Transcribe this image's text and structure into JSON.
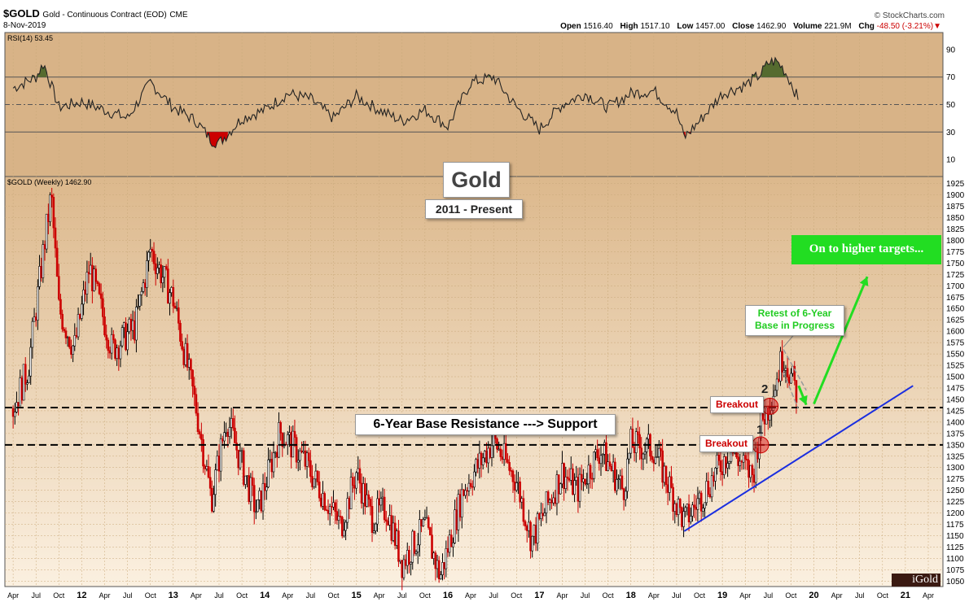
{
  "header": {
    "symbol": "$GOLD",
    "description": "Gold - Continuous Contract (EOD)",
    "exchange": "CME",
    "date": "8-Nov-2019",
    "watermark": "© StockCharts.com",
    "quote": {
      "open_label": "Open",
      "open": "1516.40",
      "high_label": "High",
      "high": "1517.10",
      "low_label": "Low",
      "low": "1457.00",
      "close_label": "Close",
      "close": "1462.90",
      "volume_label": "Volume",
      "volume": "221.9M",
      "chg_label": "Chg",
      "chg": "-48.50 (-3.21%)"
    }
  },
  "logo_text": "iGold",
  "colors": {
    "background_top": "#dcb88c",
    "background_bottom": "#fbf0e0",
    "up_candle": "#000000",
    "down_candle": "#cc0000",
    "support_line": "#000000",
    "trend_line": "#1a2ee0",
    "arrow_green": "#22dd22",
    "breakout_text": "#cc0000",
    "rsi_fill": "#556b2f"
  },
  "chart_data": [
    {
      "type": "line",
      "title": "RSI(14) 53.45",
      "indicator": "RSI",
      "period": 14,
      "last_value": 53.45,
      "ylim": [
        0,
        100
      ],
      "yticks": [
        10,
        30,
        50,
        70,
        90
      ],
      "reference_lines": [
        30,
        50,
        70
      ],
      "x": [
        "2011-04",
        "2011-07",
        "2011-08",
        "2011-10",
        "2012-01",
        "2012-04",
        "2012-07",
        "2012-10",
        "2013-01",
        "2013-04",
        "2013-06",
        "2013-07",
        "2013-10",
        "2014-01",
        "2014-04",
        "2014-07",
        "2014-10",
        "2015-01",
        "2015-04",
        "2015-07",
        "2015-10",
        "2016-01",
        "2016-04",
        "2016-07",
        "2016-10",
        "2017-01",
        "2017-04",
        "2017-07",
        "2017-10",
        "2018-01",
        "2018-04",
        "2018-07",
        "2018-08",
        "2018-10",
        "2019-01",
        "2019-04",
        "2019-06",
        "2019-07",
        "2019-08",
        "2019-09",
        "2019-10",
        "2019-11"
      ],
      "values": [
        62,
        70,
        80,
        48,
        52,
        46,
        40,
        66,
        48,
        38,
        24,
        22,
        40,
        46,
        58,
        54,
        40,
        56,
        46,
        38,
        46,
        34,
        66,
        70,
        48,
        32,
        50,
        58,
        48,
        58,
        60,
        44,
        26,
        38,
        58,
        64,
        72,
        80,
        82,
        76,
        66,
        53
      ]
    },
    {
      "type": "candlestick",
      "title": "$GOLD (Weekly) 1462.90",
      "subtitle_box": "Gold",
      "date_range_box": "2011 - Present",
      "ylim": [
        1040,
        1935
      ],
      "yticks": [
        1050,
        1075,
        1100,
        1125,
        1150,
        1175,
        1200,
        1225,
        1250,
        1275,
        1300,
        1325,
        1350,
        1375,
        1400,
        1425,
        1450,
        1475,
        1500,
        1525,
        1550,
        1575,
        1600,
        1625,
        1650,
        1675,
        1700,
        1725,
        1750,
        1775,
        1800,
        1825,
        1850,
        1875,
        1900,
        1925
      ],
      "x_tick_labels": [
        "Apr",
        "Jul",
        "Oct",
        "12",
        "Apr",
        "Jul",
        "Oct",
        "13",
        "Apr",
        "Jul",
        "Oct",
        "14",
        "Apr",
        "Jul",
        "Oct",
        "15",
        "Apr",
        "Jul",
        "Oct",
        "16",
        "Apr",
        "Jul",
        "Oct",
        "17",
        "Apr",
        "Jul",
        "Oct",
        "18",
        "Apr",
        "Jul",
        "Oct",
        "19",
        "Apr",
        "Jul",
        "Oct",
        "20",
        "Apr",
        "Jul",
        "Oct",
        "21",
        "Apr"
      ],
      "price_path": {
        "dates": [
          "2011-04",
          "2011-06",
          "2011-08",
          "2011-09",
          "2011-10",
          "2011-12",
          "2012-02",
          "2012-05",
          "2012-08",
          "2012-10",
          "2013-01",
          "2013-04",
          "2013-06",
          "2013-08",
          "2013-12",
          "2014-03",
          "2014-06",
          "2014-11",
          "2015-01",
          "2015-03",
          "2015-05",
          "2015-07",
          "2015-10",
          "2015-12",
          "2016-03",
          "2016-07",
          "2016-10",
          "2016-12",
          "2017-04",
          "2017-06",
          "2017-09",
          "2017-12",
          "2018-01",
          "2018-04",
          "2018-08",
          "2018-10",
          "2019-02",
          "2019-05",
          "2019-06",
          "2019-07",
          "2019-09",
          "2019-10",
          "2019-11"
        ],
        "close": [
          1430,
          1520,
          1780,
          1900,
          1650,
          1560,
          1740,
          1560,
          1610,
          1780,
          1670,
          1430,
          1230,
          1410,
          1200,
          1380,
          1320,
          1170,
          1290,
          1190,
          1210,
          1090,
          1170,
          1060,
          1250,
          1360,
          1270,
          1140,
          1290,
          1250,
          1340,
          1250,
          1350,
          1340,
          1180,
          1230,
          1340,
          1280,
          1400,
          1430,
          1550,
          1500,
          1462.9
        ]
      },
      "annotations": [
        {
          "text": "6-Year Base Resistance ---> Support",
          "type": "label"
        },
        {
          "text": "Retest of 6-Year Base in Progress",
          "line1": "Retest of 6-Year",
          "line2": "Base in Progress",
          "type": "callout"
        },
        {
          "text": "On to higher targets...",
          "type": "callout"
        },
        {
          "text": "Breakout",
          "price": 1350,
          "marker": "1"
        },
        {
          "text": "Breakout",
          "price": 1435,
          "marker": "2"
        }
      ],
      "horizontal_lines": [
        {
          "price": 1432,
          "style": "dashed",
          "label": "6-Year Base Resistance ---> Support"
        },
        {
          "price": 1350,
          "style": "dashed"
        }
      ],
      "trend_line": {
        "from": {
          "date": "2018-08",
          "price": 1160
        },
        "to": {
          "date": "2021-02",
          "price": 1480
        }
      },
      "arrows": [
        {
          "from": {
            "date": "2019-11",
            "price": 1480
          },
          "to": {
            "date": "2019-12",
            "price": 1438
          }
        },
        {
          "from": {
            "date": "2020-01",
            "price": 1440
          },
          "to": {
            "date": "2020-08",
            "price": 1720
          }
        }
      ]
    }
  ]
}
